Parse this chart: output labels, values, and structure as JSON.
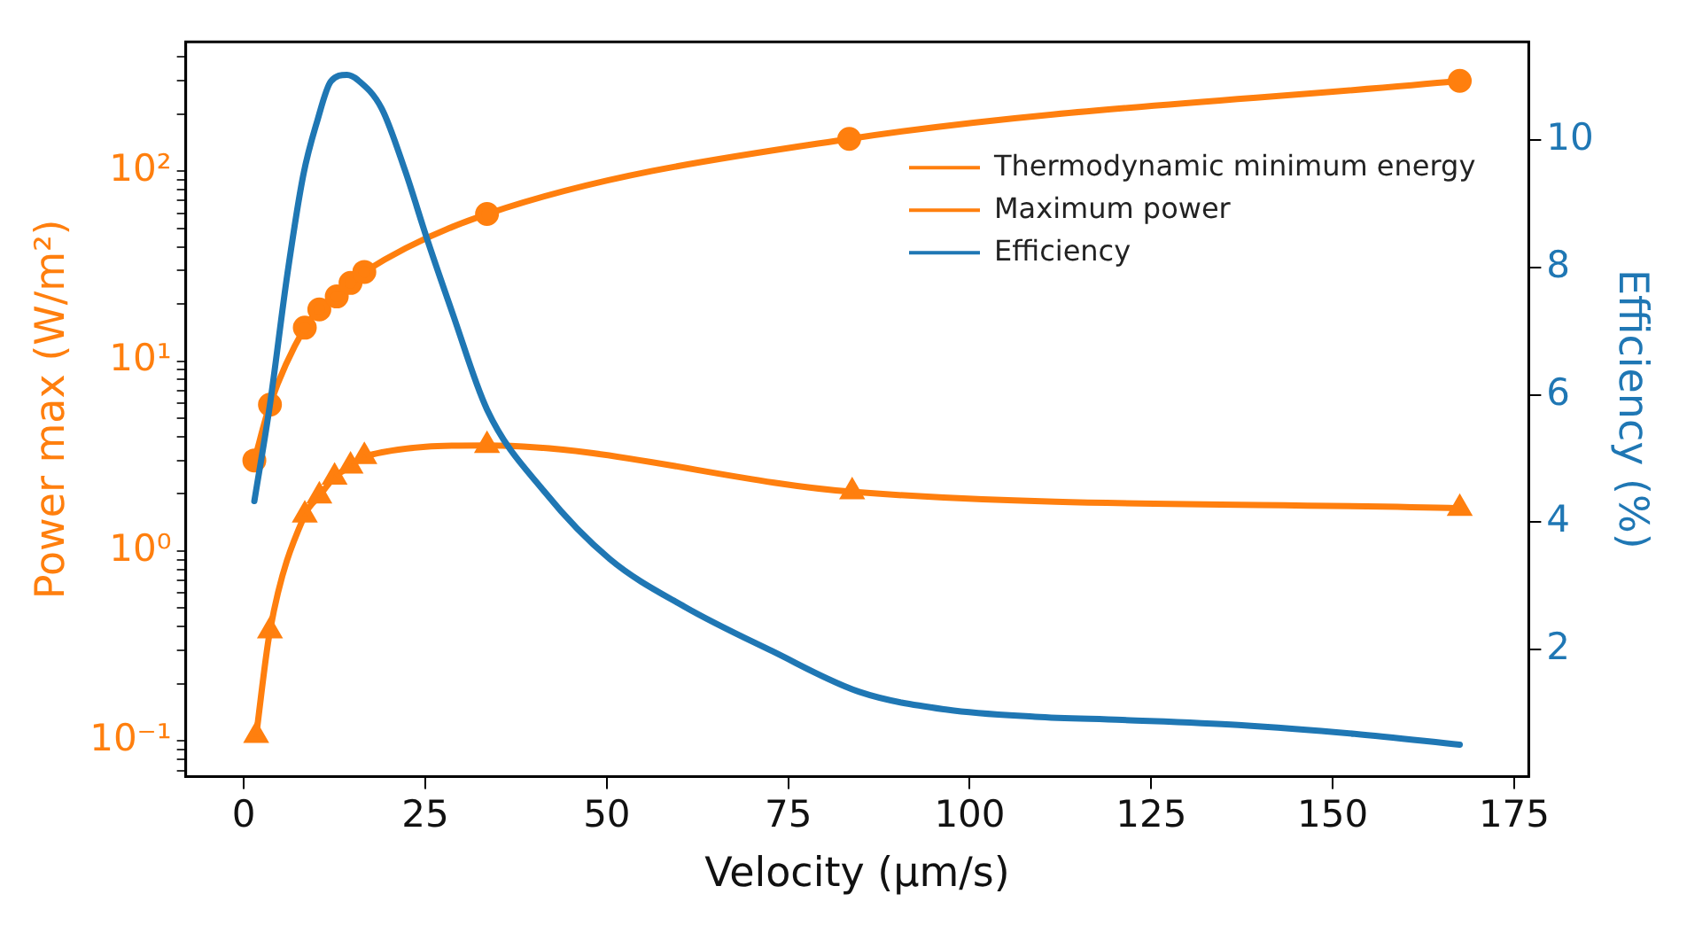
{
  "chart_data": {
    "type": "line",
    "xlabel": "Velocity (µm/s)",
    "ylabel": "Power max (W/m²)",
    "y2label": "Efficiency (%)",
    "log": "y",
    "grid": false,
    "legend": "top right",
    "xlim": [
      -8,
      177
    ],
    "xticks": [
      0,
      25,
      50,
      75,
      100,
      125,
      150,
      175
    ],
    "ylim": [
      0.065,
      480
    ],
    "yticks": [
      {
        "value": 0.1,
        "label": "10⁻¹"
      },
      {
        "value": 1,
        "label": "10⁰"
      },
      {
        "value": 10,
        "label": "10¹"
      },
      {
        "value": 100,
        "label": "10²"
      },
      {
        "value": 0.07,
        "label": null
      },
      {
        "value": 0.08,
        "label": null
      },
      {
        "value": 0.09,
        "label": null
      },
      {
        "value": 0.2,
        "label": null
      },
      {
        "value": 0.3,
        "label": null
      },
      {
        "value": 0.4,
        "label": null
      },
      {
        "value": 0.5,
        "label": null
      },
      {
        "value": 0.6,
        "label": null
      },
      {
        "value": 0.7,
        "label": null
      },
      {
        "value": 0.8,
        "label": null
      },
      {
        "value": 0.9,
        "label": null
      },
      {
        "value": 2,
        "label": null
      },
      {
        "value": 3,
        "label": null
      },
      {
        "value": 4,
        "label": null
      },
      {
        "value": 5,
        "label": null
      },
      {
        "value": 6,
        "label": null
      },
      {
        "value": 7,
        "label": null
      },
      {
        "value": 8,
        "label": null
      },
      {
        "value": 9,
        "label": null
      },
      {
        "value": 20,
        "label": null
      },
      {
        "value": 30,
        "label": null
      },
      {
        "value": 40,
        "label": null
      },
      {
        "value": 50,
        "label": null
      },
      {
        "value": 60,
        "label": null
      },
      {
        "value": 70,
        "label": null
      },
      {
        "value": 80,
        "label": null
      },
      {
        "value": 90,
        "label": null
      },
      {
        "value": 200,
        "label": null
      },
      {
        "value": 300,
        "label": null
      },
      {
        "value": 400,
        "label": null
      }
    ],
    "y2lim": [
      0,
      11.55
    ],
    "y2ticks": [
      2,
      4,
      6,
      8,
      10
    ],
    "series": [
      {
        "name": "Thermodynamic minimum energy",
        "color": "#ff7f0e",
        "marker": "circle",
        "x": [
          1.45,
          3.6,
          8.4,
          10.4,
          12.8,
          14.7,
          16.6,
          33.5,
          83.4,
          167.5
        ],
        "values": [
          3.0,
          5.9,
          15,
          18.7,
          21.9,
          25.8,
          29.5,
          59.5,
          148,
          299
        ]
      },
      {
        "name": "Maximum power",
        "color": "#ff7f0e",
        "marker": "triangle",
        "x": [
          1.7,
          3.6,
          8.4,
          10.4,
          12.5,
          14.7,
          16.6,
          33.5,
          83.8,
          167.5
        ],
        "values": [
          0.107,
          0.38,
          1.55,
          1.95,
          2.45,
          2.8,
          3.15,
          3.6,
          2.05,
          1.68
        ]
      },
      {
        "name": "Efficiency",
        "color": "#1f77b4",
        "marker": "none",
        "axis": "y2",
        "x": [
          1.45,
          3.6,
          6.0,
          8.2,
          10.1,
          12.0,
          14.2,
          15.7,
          19.0,
          22.2,
          25.3,
          28.7,
          33.5,
          41.4,
          50.4,
          60.7,
          72.8,
          84.8,
          96.9,
          109,
          121,
          137,
          153,
          167.5
        ],
        "values": [
          4.33,
          5.85,
          7.9,
          9.46,
          10.3,
          10.93,
          11.03,
          10.95,
          10.5,
          9.53,
          8.43,
          7.3,
          5.77,
          4.48,
          3.42,
          2.67,
          1.97,
          1.33,
          1.05,
          0.94,
          0.89,
          0.81,
          0.67,
          0.5
        ]
      }
    ]
  }
}
